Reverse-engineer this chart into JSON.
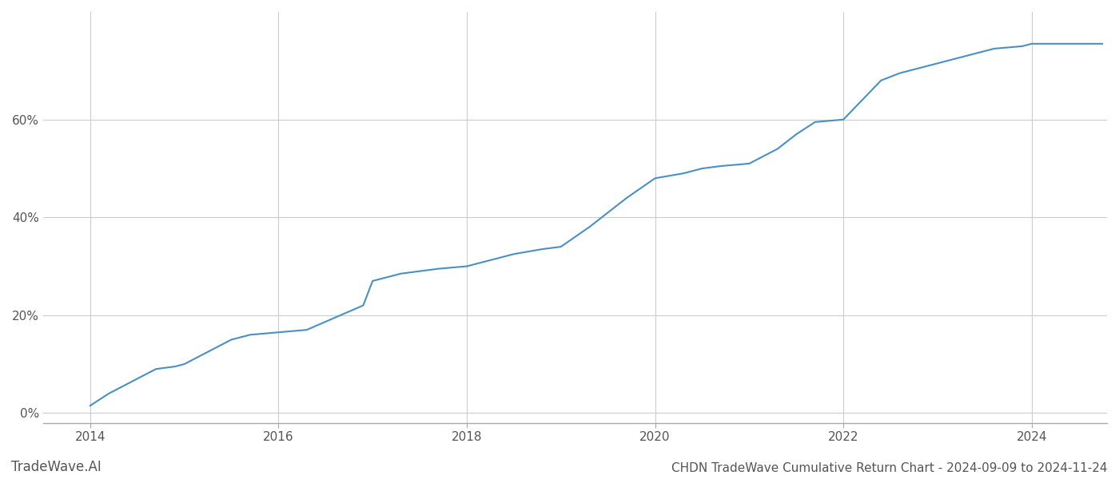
{
  "title": "CHDN TradeWave Cumulative Return Chart - 2024-09-09 to 2024-11-24",
  "watermark": "TradeWave.AI",
  "line_color": "#4a90c4",
  "background_color": "#ffffff",
  "grid_color": "#cccccc",
  "x_years": [
    2014,
    2016,
    2018,
    2020,
    2022,
    2024
  ],
  "xlim": [
    2013.5,
    2024.8
  ],
  "ylim": [
    -0.02,
    0.82
  ],
  "yticks": [
    0.0,
    0.2,
    0.4,
    0.6
  ],
  "ytick_labels": [
    "0%",
    "20%",
    "40%",
    "60%"
  ],
  "data_x": [
    2014.0,
    2014.2,
    2014.5,
    2014.7,
    2014.9,
    2015.0,
    2015.3,
    2015.5,
    2015.7,
    2016.0,
    2016.3,
    2016.6,
    2016.9,
    2017.0,
    2017.3,
    2017.5,
    2017.7,
    2018.0,
    2018.3,
    2018.5,
    2018.8,
    2019.0,
    2019.3,
    2019.5,
    2019.7,
    2020.0,
    2020.3,
    2020.5,
    2020.7,
    2021.0,
    2021.3,
    2021.5,
    2021.7,
    2022.0,
    2022.2,
    2022.4,
    2022.6,
    2022.8,
    2023.0,
    2023.3,
    2023.6,
    2023.9,
    2024.0,
    2024.2,
    2024.5,
    2024.75
  ],
  "data_y": [
    0.015,
    0.04,
    0.07,
    0.09,
    0.095,
    0.1,
    0.13,
    0.15,
    0.16,
    0.165,
    0.17,
    0.195,
    0.22,
    0.27,
    0.285,
    0.29,
    0.295,
    0.3,
    0.315,
    0.325,
    0.335,
    0.34,
    0.38,
    0.41,
    0.44,
    0.48,
    0.49,
    0.5,
    0.505,
    0.51,
    0.54,
    0.57,
    0.595,
    0.6,
    0.64,
    0.68,
    0.695,
    0.705,
    0.715,
    0.73,
    0.745,
    0.75,
    0.755,
    0.755,
    0.755,
    0.755
  ],
  "line_width": 1.5,
  "title_fontsize": 11,
  "tick_fontsize": 11,
  "watermark_fontsize": 12
}
